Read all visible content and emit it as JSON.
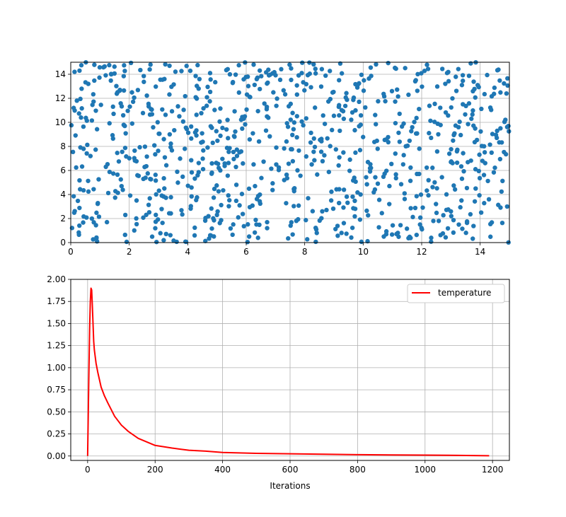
{
  "chart_data": [
    {
      "type": "scatter",
      "title": "",
      "xlabel": "",
      "ylabel": "",
      "xlim": [
        0,
        15
      ],
      "ylim": [
        0,
        15
      ],
      "xticks": [
        "0",
        "2",
        "4",
        "6",
        "8",
        "10",
        "12",
        "14"
      ],
      "yticks": [
        "0",
        "2",
        "4",
        "6",
        "8",
        "10",
        "12",
        "14"
      ],
      "grid": true,
      "marker_color": "#1f77b4",
      "n_points": 900,
      "distribution": "approximately uniform random over [0,15] x [0,15]",
      "sample_points": [
        [
          0.1,
          11.2
        ],
        [
          0.3,
          14.3
        ],
        [
          0.6,
          13.2
        ],
        [
          0.9,
          0.1
        ],
        [
          1.2,
          6.3
        ],
        [
          1.6,
          12.5
        ],
        [
          2.1,
          9.9
        ],
        [
          2.7,
          14.4
        ],
        [
          3.2,
          4.5
        ],
        [
          3.9,
          7.8
        ],
        [
          4.4,
          13.6
        ],
        [
          5.0,
          2.3
        ],
        [
          5.6,
          8.8
        ],
        [
          6.1,
          0.5
        ],
        [
          6.7,
          11.1
        ],
        [
          7.3,
          5.2
        ],
        [
          7.9,
          14.1
        ],
        [
          8.6,
          2.6
        ],
        [
          9.2,
          9.3
        ],
        [
          9.8,
          12.9
        ],
        [
          10.5,
          4.9
        ],
        [
          11.1,
          7.4
        ],
        [
          11.8,
          13.5
        ],
        [
          12.4,
          1.8
        ],
        [
          13.0,
          6.7
        ],
        [
          13.7,
          10.3
        ],
        [
          14.3,
          3.6
        ],
        [
          14.9,
          12.4
        ]
      ]
    },
    {
      "type": "line",
      "title": "",
      "xlabel": "Iterations",
      "ylabel": "",
      "xlim": [
        -50,
        1250
      ],
      "ylim": [
        -0.05,
        2.0
      ],
      "xticks": [
        "0",
        "200",
        "400",
        "600",
        "800",
        "1000",
        "1200"
      ],
      "yticks": [
        "0.00",
        "0.25",
        "0.50",
        "0.75",
        "1.00",
        "1.25",
        "1.50",
        "1.75",
        "2.00"
      ],
      "grid": true,
      "legend": "upper-right",
      "series": [
        {
          "name": "temperature",
          "color": "#ff0000",
          "x": [
            0,
            2,
            4,
            6,
            8,
            10,
            12,
            14,
            16,
            18,
            20,
            25,
            30,
            40,
            50,
            60,
            80,
            100,
            120,
            150,
            200,
            250,
            300,
            350,
            400,
            450,
            500,
            600,
            700,
            800,
            900,
            1000,
            1100,
            1190
          ],
          "y": [
            0.0,
            0.5,
            1.0,
            1.45,
            1.75,
            1.9,
            1.88,
            1.7,
            1.5,
            1.3,
            1.2,
            1.05,
            0.95,
            0.78,
            0.68,
            0.6,
            0.45,
            0.35,
            0.28,
            0.2,
            0.12,
            0.09,
            0.065,
            0.055,
            0.04,
            0.035,
            0.03,
            0.025,
            0.02,
            0.015,
            0.012,
            0.01,
            0.007,
            0.003
          ]
        }
      ]
    }
  ]
}
